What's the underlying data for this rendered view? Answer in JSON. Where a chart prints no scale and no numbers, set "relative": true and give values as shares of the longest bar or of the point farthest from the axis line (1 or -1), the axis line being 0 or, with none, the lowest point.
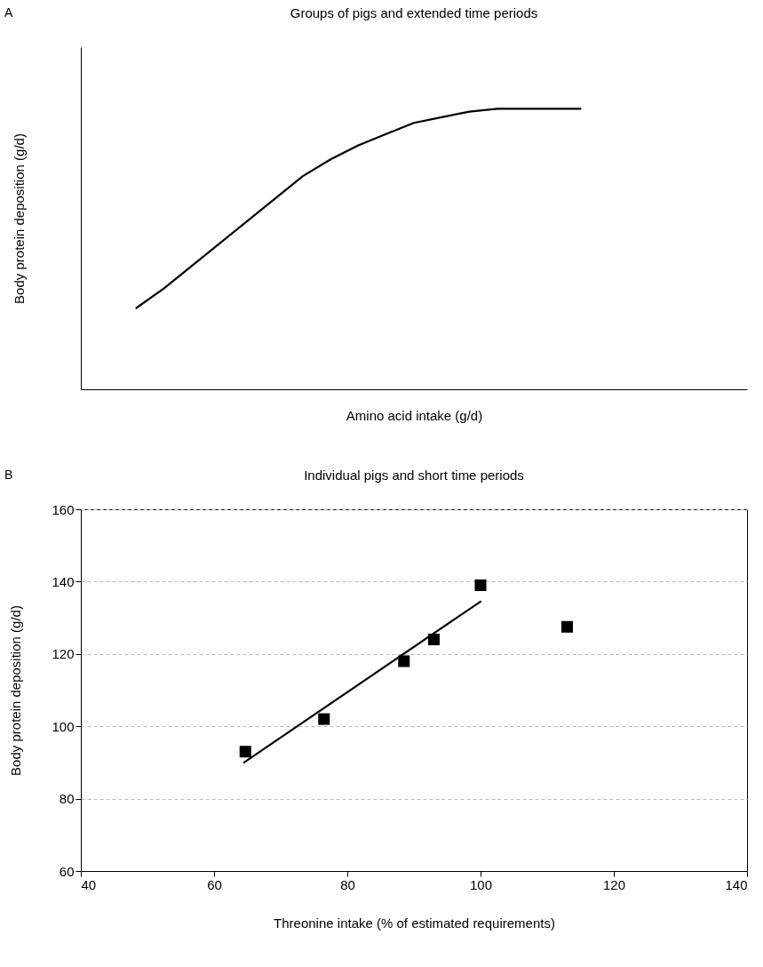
{
  "chart_data": [
    {
      "type": "line",
      "title": "Groups of pigs and extended time periods",
      "xlabel": "Amino acid intake (g/d)",
      "ylabel": "Body protein deposition (g/d)",
      "annotations": [
        "A"
      ],
      "relative": true,
      "categories": [
        null,
        null,
        null,
        null,
        null,
        null,
        null,
        null,
        null,
        null,
        null,
        null,
        null,
        null,
        null,
        null,
        null,
        null,
        null,
        null,
        null,
        null,
        null,
        null,
        null
      ],
      "series": [
        {
          "color": "#000000",
          "values": [
            null,
            null,
            0.29,
            0.36,
            0.44,
            0.52,
            0.6,
            0.68,
            0.76,
            0.82,
            0.87,
            0.91,
            0.95,
            0.97,
            0.99,
            1,
            1,
            1,
            1,
            null,
            null,
            null,
            null,
            null,
            null
          ]
        }
      ]
    },
    {
      "type": "scatter",
      "title": "Individual pigs and short time periods",
      "xlabel": "Threonine intake (% of estimated requirements)",
      "ylabel": "Body protein deposition (g/d)",
      "annotations": [
        "B"
      ],
      "xlim": [
        40,
        140
      ],
      "xticks": [
        40,
        60,
        80,
        100,
        120,
        140
      ],
      "ylim": [
        60,
        160
      ],
      "yticks": [
        60,
        80,
        100,
        120,
        140,
        160
      ],
      "grid": "y",
      "series": [
        {
          "marker": "square",
          "color": "#000000",
          "x": [
            64.7,
            76.5,
            88.5,
            93,
            100,
            113
          ],
          "values": [
            93,
            102,
            118,
            124,
            139,
            127.5
          ]
        },
        {
          "type": "line",
          "color": "#000000",
          "x": [
            64.5,
            100
          ],
          "values": [
            90,
            134.5
          ]
        }
      ]
    }
  ]
}
